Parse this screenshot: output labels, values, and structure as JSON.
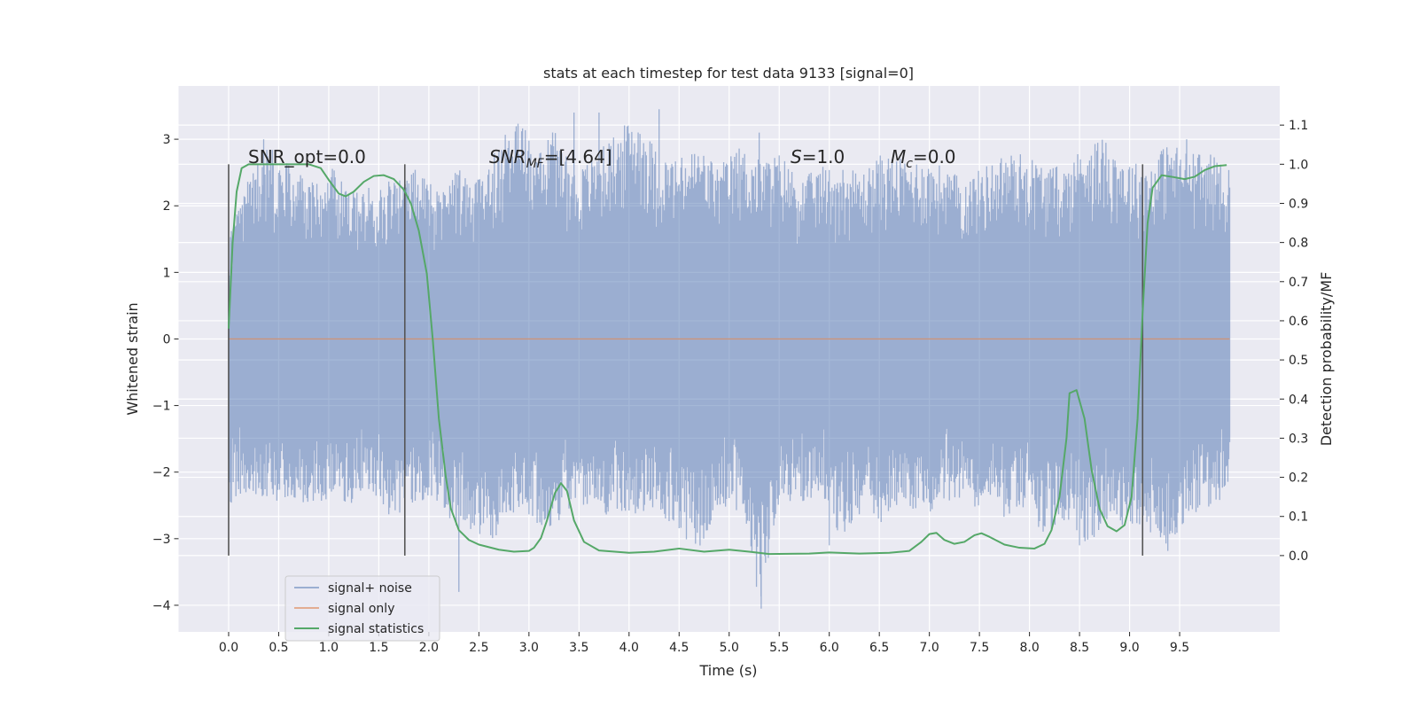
{
  "chart_data": {
    "type": "line",
    "title": "stats at each timestep for test data 9133 [signal=0]",
    "xlabel": "Time (s)",
    "ylabel": "Whitened strain",
    "y2label": "Detection probability/MF",
    "xlim": [
      -0.5,
      10.5
    ],
    "ylim": [
      -4.4,
      3.8
    ],
    "y2lim": [
      -0.195,
      1.2
    ],
    "x_ticks": [
      "0.0",
      "0.5",
      "1.0",
      "1.5",
      "2.0",
      "2.5",
      "3.0",
      "3.5",
      "4.0",
      "4.5",
      "5.0",
      "5.5",
      "6.0",
      "6.5",
      "7.0",
      "7.5",
      "8.0",
      "8.5",
      "9.0",
      "9.5"
    ],
    "y_ticks": [
      "−4",
      "−3",
      "−2",
      "−1",
      "0",
      "1",
      "2",
      "3"
    ],
    "y2_ticks": [
      "0.0",
      "0.1",
      "0.2",
      "0.3",
      "0.4",
      "0.5",
      "0.6",
      "0.7",
      "0.8",
      "0.9",
      "1.0",
      "1.1"
    ],
    "grid": true,
    "legend_position": "lower-left",
    "annotations": {
      "snr_opt": "SNR_opt=0.0",
      "snr_mf_main": "SNR",
      "snr_mf_sub": "MF",
      "snr_mf_value": "=[4.64]",
      "s_main": "S",
      "s_value": "=1.0",
      "mc_main": "M",
      "mc_sub": "c",
      "mc_value": "=0.0"
    },
    "vlines_x": [
      0.0,
      1.76,
      9.13
    ],
    "vline_range_y2": [
      0.0,
      1.0
    ],
    "series": [
      {
        "name": "signal+ noise",
        "color": "#4c72b0",
        "note": "whitened noise, roughly uniform over 0.0–10.0 s",
        "envelope_hi": [
          1.5,
          2.5,
          2.9,
          2.6,
          2.4,
          2.6,
          2.2,
          2.3,
          2.4,
          2.6,
          2.3,
          2.6,
          2.4,
          2.8,
          3.4,
          3.0,
          3.2,
          2.5,
          2.8,
          3.1,
          3.4,
          2.8,
          2.7,
          2.9,
          2.6,
          2.9,
          2.7,
          2.8,
          2.4,
          2.6,
          2.6,
          2.5,
          2.8,
          2.7,
          2.7,
          2.6,
          2.4,
          2.6,
          2.8,
          2.8,
          2.6,
          2.6,
          3.0,
          3.0,
          2.7,
          2.6,
          3.0,
          2.8,
          2.8,
          2.6
        ],
        "envelope_lo": [
          -2.5,
          -2.3,
          -2.4,
          -2.5,
          -2.6,
          -2.4,
          -2.5,
          -2.3,
          -2.7,
          -2.6,
          -2.4,
          -2.8,
          -2.9,
          -3.0,
          -2.6,
          -2.8,
          -2.9,
          -2.4,
          -2.7,
          -2.6,
          -2.7,
          -2.6,
          -2.9,
          -3.2,
          -2.5,
          -2.6,
          -4.0,
          -2.4,
          -2.5,
          -2.3,
          -3.1,
          -2.6,
          -2.8,
          -2.4,
          -2.7,
          -2.4,
          -2.6,
          -2.5,
          -2.7,
          -2.6,
          -3.0,
          -2.7,
          -3.1,
          -2.8,
          -2.8,
          -2.9,
          -3.2,
          -2.7,
          -2.6,
          -2.3
        ],
        "spikes": [
          [
            2.3,
            -3.8
          ],
          [
            5.32,
            -4.05
          ],
          [
            3.45,
            3.4
          ],
          [
            3.7,
            3.4
          ],
          [
            4.3,
            3.45
          ],
          [
            5.3,
            3.1
          ],
          [
            0.35,
            3.0
          ],
          [
            9.57,
            3.0
          ],
          [
            6.0,
            -3.1
          ],
          [
            8.5,
            -3.1
          ]
        ]
      },
      {
        "name": "signal only",
        "color": "#dd8452",
        "points": [
          [
            0.0,
            0.0
          ],
          [
            10.0,
            0.0
          ]
        ]
      },
      {
        "name": "signal statistics",
        "color": "#55a868",
        "axis": "right",
        "points": [
          [
            0.0,
            0.58
          ],
          [
            0.04,
            0.8
          ],
          [
            0.08,
            0.93
          ],
          [
            0.13,
            0.99
          ],
          [
            0.2,
            1.0
          ],
          [
            0.5,
            1.0
          ],
          [
            0.8,
            1.0
          ],
          [
            0.92,
            0.99
          ],
          [
            1.0,
            0.96
          ],
          [
            1.1,
            0.925
          ],
          [
            1.17,
            0.918
          ],
          [
            1.25,
            0.93
          ],
          [
            1.35,
            0.955
          ],
          [
            1.45,
            0.97
          ],
          [
            1.55,
            0.972
          ],
          [
            1.65,
            0.962
          ],
          [
            1.75,
            0.935
          ],
          [
            1.82,
            0.9
          ],
          [
            1.9,
            0.83
          ],
          [
            1.98,
            0.72
          ],
          [
            2.04,
            0.55
          ],
          [
            2.1,
            0.35
          ],
          [
            2.17,
            0.2
          ],
          [
            2.22,
            0.12
          ],
          [
            2.3,
            0.065
          ],
          [
            2.4,
            0.04
          ],
          [
            2.5,
            0.028
          ],
          [
            2.7,
            0.015
          ],
          [
            2.85,
            0.01
          ],
          [
            3.0,
            0.012
          ],
          [
            3.05,
            0.02
          ],
          [
            3.12,
            0.045
          ],
          [
            3.18,
            0.09
          ],
          [
            3.26,
            0.16
          ],
          [
            3.32,
            0.185
          ],
          [
            3.38,
            0.165
          ],
          [
            3.45,
            0.09
          ],
          [
            3.55,
            0.035
          ],
          [
            3.7,
            0.013
          ],
          [
            4.0,
            0.007
          ],
          [
            4.25,
            0.01
          ],
          [
            4.5,
            0.018
          ],
          [
            4.75,
            0.01
          ],
          [
            5.0,
            0.015
          ],
          [
            5.2,
            0.01
          ],
          [
            5.4,
            0.004
          ],
          [
            5.8,
            0.005
          ],
          [
            6.0,
            0.008
          ],
          [
            6.3,
            0.005
          ],
          [
            6.6,
            0.007
          ],
          [
            6.8,
            0.012
          ],
          [
            6.92,
            0.035
          ],
          [
            7.0,
            0.055
          ],
          [
            7.07,
            0.058
          ],
          [
            7.15,
            0.04
          ],
          [
            7.25,
            0.03
          ],
          [
            7.35,
            0.035
          ],
          [
            7.45,
            0.052
          ],
          [
            7.52,
            0.057
          ],
          [
            7.6,
            0.048
          ],
          [
            7.75,
            0.028
          ],
          [
            7.9,
            0.02
          ],
          [
            8.05,
            0.018
          ],
          [
            8.15,
            0.03
          ],
          [
            8.22,
            0.065
          ],
          [
            8.3,
            0.15
          ],
          [
            8.37,
            0.3
          ],
          [
            8.4,
            0.415
          ],
          [
            8.47,
            0.423
          ],
          [
            8.55,
            0.35
          ],
          [
            8.62,
            0.22
          ],
          [
            8.7,
            0.12
          ],
          [
            8.78,
            0.075
          ],
          [
            8.87,
            0.062
          ],
          [
            8.95,
            0.078
          ],
          [
            9.02,
            0.15
          ],
          [
            9.08,
            0.35
          ],
          [
            9.13,
            0.62
          ],
          [
            9.18,
            0.85
          ],
          [
            9.23,
            0.94
          ],
          [
            9.32,
            0.972
          ],
          [
            9.42,
            0.968
          ],
          [
            9.55,
            0.962
          ],
          [
            9.65,
            0.968
          ],
          [
            9.75,
            0.985
          ],
          [
            9.85,
            0.995
          ],
          [
            9.97,
            0.998
          ]
        ]
      }
    ]
  }
}
